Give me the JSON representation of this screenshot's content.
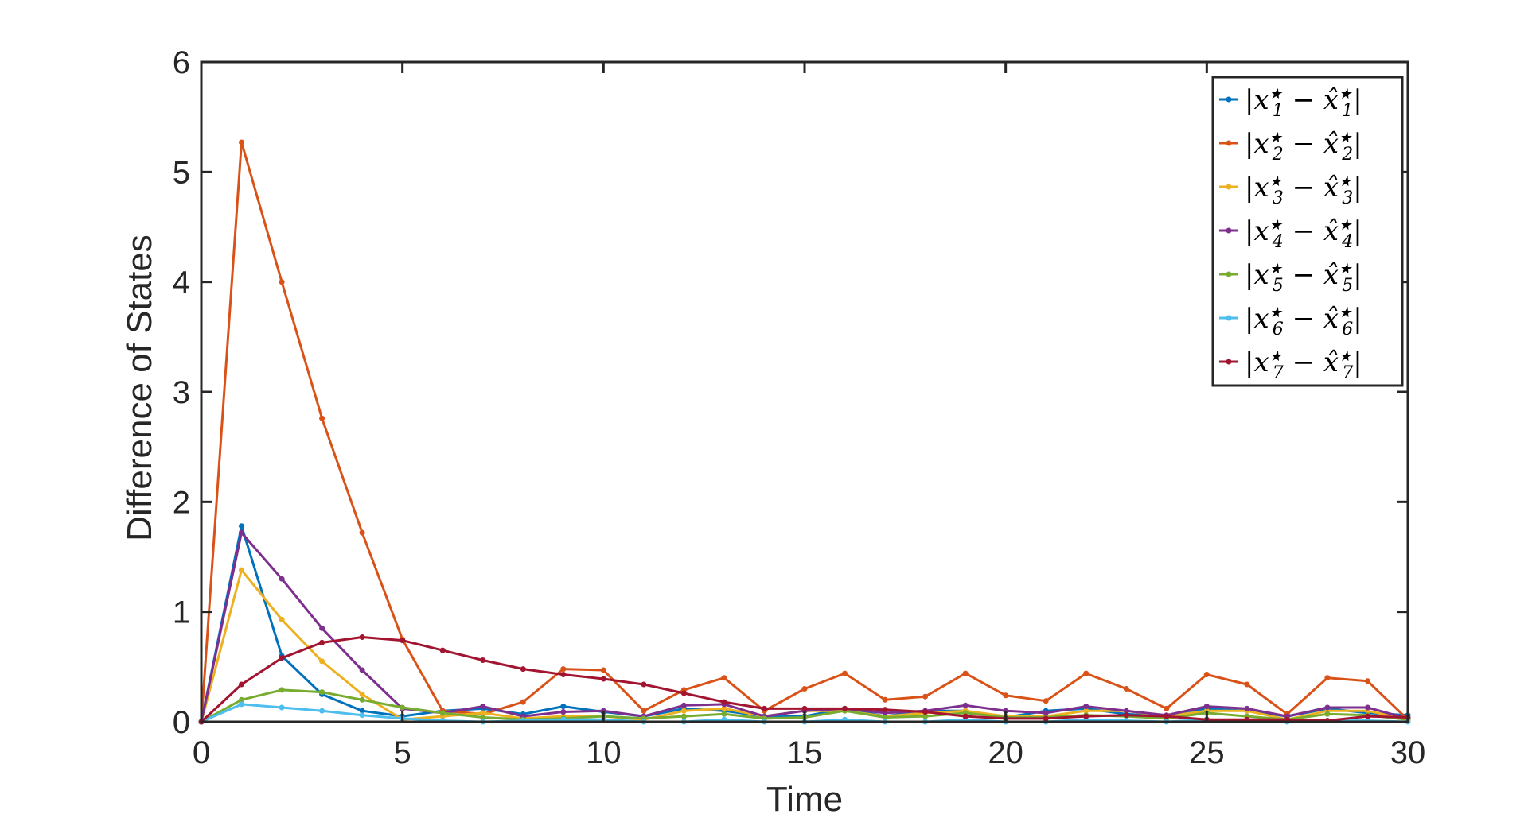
{
  "chart_data": {
    "type": "line",
    "xlabel": "Time",
    "ylabel": "Difference of States",
    "xlim": [
      0,
      30
    ],
    "ylim": [
      0,
      6
    ],
    "xticks": [
      0,
      5,
      10,
      15,
      20,
      25,
      30
    ],
    "yticks": [
      0,
      1,
      2,
      3,
      4,
      5,
      6
    ],
    "grid": false,
    "legend_position": "top-right",
    "x": [
      0,
      1,
      2,
      3,
      4,
      5,
      6,
      7,
      8,
      9,
      10,
      11,
      12,
      13,
      14,
      15,
      16,
      17,
      18,
      19,
      20,
      21,
      22,
      23,
      24,
      25,
      26,
      27,
      28,
      29,
      30
    ],
    "series": [
      {
        "name": "|x1★ − x̂1★|",
        "color": "#0072BD",
        "values": [
          0,
          1.78,
          0.6,
          0.25,
          0.1,
          0.05,
          0.1,
          0.12,
          0.07,
          0.14,
          0.09,
          0.05,
          0.12,
          0.1,
          0.05,
          0.05,
          0.12,
          0.05,
          0.1,
          0.1,
          0.04,
          0.1,
          0.12,
          0.07,
          0.05,
          0.12,
          0.1,
          0.05,
          0.12,
          0.08,
          0.06
        ]
      },
      {
        "name": "|x2★ − x̂2★|",
        "color": "#D95319",
        "values": [
          0,
          5.27,
          4.0,
          2.76,
          1.72,
          0.75,
          0.1,
          0.07,
          0.18,
          0.48,
          0.47,
          0.1,
          0.29,
          0.4,
          0.1,
          0.3,
          0.44,
          0.2,
          0.23,
          0.44,
          0.24,
          0.19,
          0.44,
          0.3,
          0.12,
          0.43,
          0.34,
          0.07,
          0.4,
          0.37,
          0.02
        ]
      },
      {
        "name": "|x3★ − x̂3★|",
        "color": "#EDB120",
        "values": [
          0,
          1.38,
          0.93,
          0.55,
          0.25,
          0.02,
          0.05,
          0.08,
          0.03,
          0.05,
          0.05,
          0.02,
          0.1,
          0.12,
          0.05,
          0.1,
          0.1,
          0.05,
          0.08,
          0.1,
          0.05,
          0.05,
          0.1,
          0.1,
          0.05,
          0.1,
          0.1,
          0.02,
          0.1,
          0.1,
          0.02
        ]
      },
      {
        "name": "|x4★ − x̂4★|",
        "color": "#7E2F8E",
        "values": [
          0,
          1.72,
          1.3,
          0.85,
          0.47,
          0.12,
          0.08,
          0.14,
          0.05,
          0.09,
          0.1,
          0.05,
          0.15,
          0.16,
          0.05,
          0.1,
          0.12,
          0.08,
          0.1,
          0.15,
          0.1,
          0.08,
          0.14,
          0.1,
          0.06,
          0.14,
          0.12,
          0.05,
          0.13,
          0.13,
          0.03
        ]
      },
      {
        "name": "|x5★ − x̂5★|",
        "color": "#77AC30",
        "values": [
          0,
          0.2,
          0.29,
          0.27,
          0.2,
          0.13,
          0.08,
          0.04,
          0.02,
          0.03,
          0.05,
          0.03,
          0.05,
          0.07,
          0.03,
          0.04,
          0.1,
          0.04,
          0.05,
          0.08,
          0.04,
          0.04,
          0.06,
          0.05,
          0.03,
          0.08,
          0.05,
          0.02,
          0.07,
          0.06,
          0.02
        ]
      },
      {
        "name": "|x6★ − x̂6★|",
        "color": "#4DBEEE",
        "values": [
          0,
          0.16,
          0.13,
          0.1,
          0.06,
          0.03,
          0.01,
          0.0,
          0.01,
          0.02,
          0.02,
          0.0,
          0.0,
          0.02,
          0.0,
          0.0,
          0.02,
          0.0,
          0.0,
          0.02,
          0.0,
          0.0,
          0.02,
          0.01,
          0.0,
          0.02,
          0.01,
          0.0,
          0.01,
          0.01,
          0.0
        ]
      },
      {
        "name": "|x7★ − x̂7★|",
        "color": "#A2142F",
        "values": [
          0,
          0.34,
          0.58,
          0.72,
          0.77,
          0.74,
          0.65,
          0.56,
          0.48,
          0.43,
          0.39,
          0.34,
          0.26,
          0.18,
          0.12,
          0.12,
          0.12,
          0.11,
          0.09,
          0.05,
          0.03,
          0.03,
          0.05,
          0.06,
          0.05,
          0.02,
          0.02,
          0.02,
          0.01,
          0.05,
          0.04
        ]
      }
    ],
    "legend_entries": [
      {
        "index": "1"
      },
      {
        "index": "2"
      },
      {
        "index": "3"
      },
      {
        "index": "4"
      },
      {
        "index": "5"
      },
      {
        "index": "6"
      },
      {
        "index": "7"
      }
    ]
  }
}
